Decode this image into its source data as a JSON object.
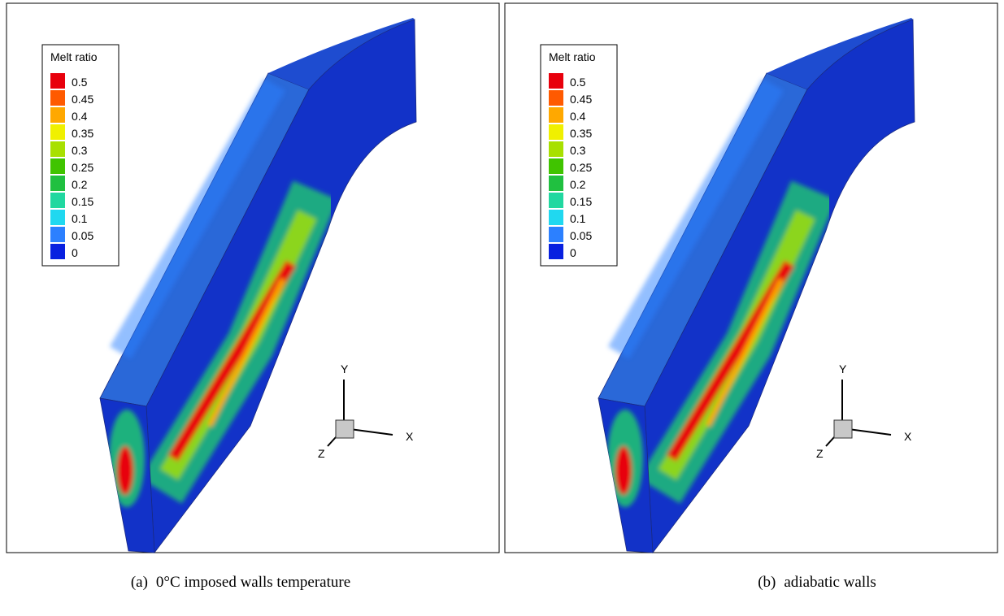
{
  "panels": [
    {
      "legend": {
        "title": "Melt ratio",
        "levels": [
          0.5,
          0.45,
          0.4,
          0.35,
          0.3,
          0.25,
          0.2,
          0.15,
          0.1,
          0.05,
          0
        ],
        "colors": [
          "#e8000c",
          "#ff5a00",
          "#ffa800",
          "#f0f000",
          "#a8e000",
          "#40c400",
          "#20c040",
          "#20d8a0",
          "#20d8f0",
          "#2c80ff",
          "#0820e0"
        ]
      },
      "axes": {
        "y": "Y",
        "x": "X",
        "z": "Z"
      },
      "caption": {
        "label": "(a)",
        "text": "0°C imposed walls temperature"
      }
    },
    {
      "legend": {
        "title": "Melt ratio",
        "levels": [
          0.5,
          0.45,
          0.4,
          0.35,
          0.3,
          0.25,
          0.2,
          0.15,
          0.1,
          0.05,
          0
        ],
        "colors": [
          "#e8000c",
          "#ff5a00",
          "#ffa800",
          "#f0f000",
          "#a8e000",
          "#40c400",
          "#20c040",
          "#20d8a0",
          "#20d8f0",
          "#2c80ff",
          "#0820e0"
        ]
      },
      "axes": {
        "y": "Y",
        "x": "X",
        "z": "Z"
      },
      "caption": {
        "label": "(b)",
        "text": "adiabatic walls"
      }
    }
  ]
}
